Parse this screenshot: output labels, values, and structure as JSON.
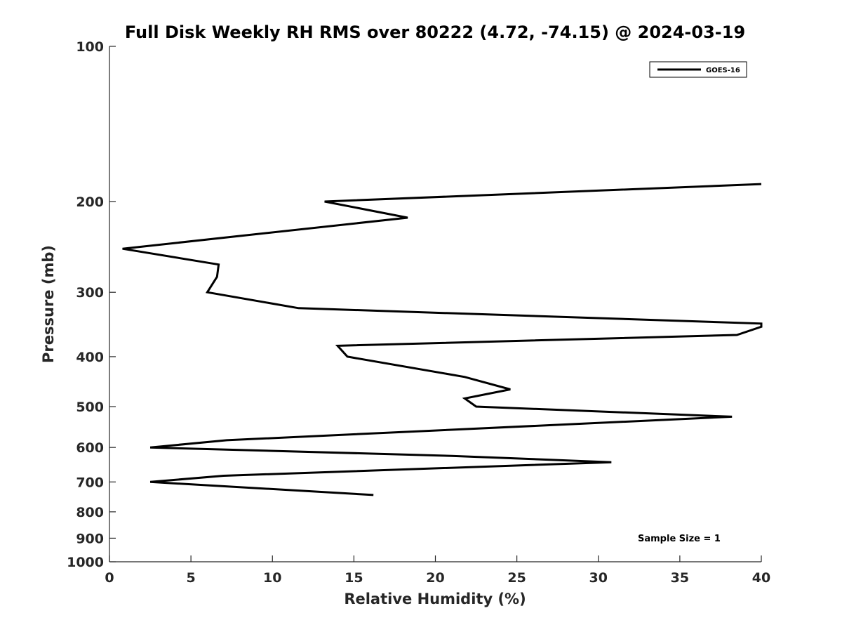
{
  "chart_data": {
    "type": "line",
    "title": "Full Disk Weekly RH RMS over 80222 (4.72, -74.15) @ 2024-03-19",
    "xlabel": "Relative Humidity (%)",
    "ylabel": "Pressure (mb)",
    "xlim": [
      0,
      40
    ],
    "ylim": [
      100,
      1000
    ],
    "y_scale": "log",
    "y_reversed": true,
    "x_ticks": [
      0,
      5,
      10,
      15,
      20,
      25,
      30,
      35,
      40
    ],
    "y_ticks": [
      100,
      200,
      300,
      400,
      500,
      600,
      700,
      800,
      900,
      1000
    ],
    "legend_position": "top-right",
    "series": [
      {
        "name": "GOES-16",
        "color": "#000000",
        "points": [
          [
            40.0,
            185
          ],
          [
            13.2,
            200
          ],
          [
            18.3,
            215
          ],
          [
            0.8,
            247
          ],
          [
            6.7,
            265
          ],
          [
            6.6,
            280
          ],
          [
            6.0,
            300
          ],
          [
            11.6,
            322
          ],
          [
            40.0,
            345
          ],
          [
            40.0,
            350
          ],
          [
            38.5,
            363
          ],
          [
            14.0,
            381
          ],
          [
            14.6,
            400
          ],
          [
            21.8,
            438
          ],
          [
            24.6,
            463
          ],
          [
            21.8,
            482
          ],
          [
            22.5,
            500
          ],
          [
            38.2,
            523
          ],
          [
            7.2,
            581
          ],
          [
            2.5,
            600
          ],
          [
            21.0,
            623
          ],
          [
            30.8,
            641
          ],
          [
            7.0,
            681
          ],
          [
            2.5,
            700
          ],
          [
            16.2,
            742
          ]
        ]
      }
    ],
    "annotation": "Sample Size = 1"
  }
}
